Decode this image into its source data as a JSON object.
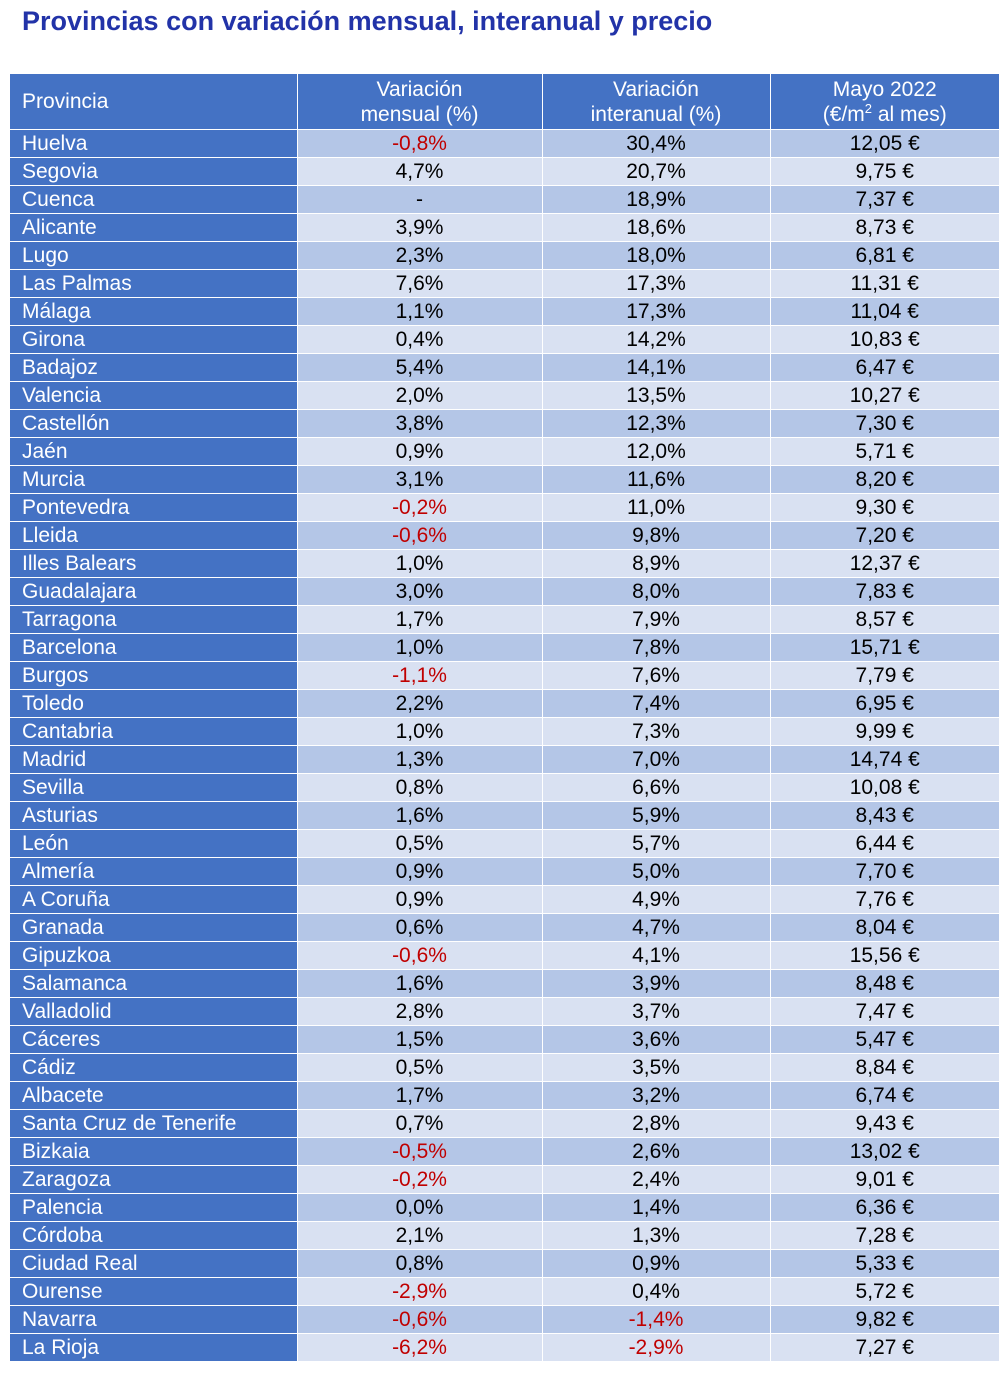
{
  "title": "Provincias con variación mensual, interanual y precio",
  "headers": {
    "provincia": "Provincia",
    "mensual_line1": "Variación",
    "mensual_line2": "mensual (%)",
    "interanual_line1": "Variación",
    "interanual_line2": "interanual (%)",
    "precio_line1": "Mayo 2022",
    "precio_line2_pre": "(€/m",
    "precio_line2_sup": "2",
    "precio_line2_post": " al mes)"
  },
  "colors": {
    "header_blue": "#4472c4",
    "row_dark": "#b4c6e7",
    "row_light": "#d9e1f2",
    "negative": "#c00000",
    "title": "#2233a8"
  },
  "rows": [
    {
      "provincia": "Huelva",
      "mensual": "-0,8%",
      "interanual": "30,4%",
      "precio": "12,05 €"
    },
    {
      "provincia": "Segovia",
      "mensual": "4,7%",
      "interanual": "20,7%",
      "precio": "9,75 €"
    },
    {
      "provincia": "Cuenca",
      "mensual": "-",
      "interanual": "18,9%",
      "precio": "7,37 €"
    },
    {
      "provincia": "Alicante",
      "mensual": "3,9%",
      "interanual": "18,6%",
      "precio": "8,73 €"
    },
    {
      "provincia": "Lugo",
      "mensual": "2,3%",
      "interanual": "18,0%",
      "precio": "6,81 €"
    },
    {
      "provincia": "Las Palmas",
      "mensual": "7,6%",
      "interanual": "17,3%",
      "precio": "11,31 €"
    },
    {
      "provincia": "Málaga",
      "mensual": "1,1%",
      "interanual": "17,3%",
      "precio": "11,04 €"
    },
    {
      "provincia": "Girona",
      "mensual": "0,4%",
      "interanual": "14,2%",
      "precio": "10,83 €"
    },
    {
      "provincia": "Badajoz",
      "mensual": "5,4%",
      "interanual": "14,1%",
      "precio": "6,47 €"
    },
    {
      "provincia": "Valencia",
      "mensual": "2,0%",
      "interanual": "13,5%",
      "precio": "10,27 €"
    },
    {
      "provincia": "Castellón",
      "mensual": "3,8%",
      "interanual": "12,3%",
      "precio": "7,30 €"
    },
    {
      "provincia": "Jaén",
      "mensual": "0,9%",
      "interanual": "12,0%",
      "precio": "5,71 €"
    },
    {
      "provincia": "Murcia",
      "mensual": "3,1%",
      "interanual": "11,6%",
      "precio": "8,20 €"
    },
    {
      "provincia": "Pontevedra",
      "mensual": "-0,2%",
      "interanual": "11,0%",
      "precio": "9,30 €"
    },
    {
      "provincia": "Lleida",
      "mensual": "-0,6%",
      "interanual": "9,8%",
      "precio": "7,20 €"
    },
    {
      "provincia": "Illes Balears",
      "mensual": "1,0%",
      "interanual": "8,9%",
      "precio": "12,37 €"
    },
    {
      "provincia": "Guadalajara",
      "mensual": "3,0%",
      "interanual": "8,0%",
      "precio": "7,83 €"
    },
    {
      "provincia": "Tarragona",
      "mensual": "1,7%",
      "interanual": "7,9%",
      "precio": "8,57 €"
    },
    {
      "provincia": "Barcelona",
      "mensual": "1,0%",
      "interanual": "7,8%",
      "precio": "15,71 €"
    },
    {
      "provincia": "Burgos",
      "mensual": "-1,1%",
      "interanual": "7,6%",
      "precio": "7,79 €"
    },
    {
      "provincia": "Toledo",
      "mensual": "2,2%",
      "interanual": "7,4%",
      "precio": "6,95 €"
    },
    {
      "provincia": "Cantabria",
      "mensual": "1,0%",
      "interanual": "7,3%",
      "precio": "9,99 €"
    },
    {
      "provincia": "Madrid",
      "mensual": "1,3%",
      "interanual": "7,0%",
      "precio": "14,74 €"
    },
    {
      "provincia": "Sevilla",
      "mensual": "0,8%",
      "interanual": "6,6%",
      "precio": "10,08 €"
    },
    {
      "provincia": "Asturias",
      "mensual": "1,6%",
      "interanual": "5,9%",
      "precio": "8,43 €"
    },
    {
      "provincia": "León",
      "mensual": "0,5%",
      "interanual": "5,7%",
      "precio": "6,44 €"
    },
    {
      "provincia": "Almería",
      "mensual": "0,9%",
      "interanual": "5,0%",
      "precio": "7,70 €"
    },
    {
      "provincia": "A Coruña",
      "mensual": "0,9%",
      "interanual": "4,9%",
      "precio": "7,76 €"
    },
    {
      "provincia": "Granada",
      "mensual": "0,6%",
      "interanual": "4,7%",
      "precio": "8,04 €"
    },
    {
      "provincia": "Gipuzkoa",
      "mensual": "-0,6%",
      "interanual": "4,1%",
      "precio": "15,56 €"
    },
    {
      "provincia": "Salamanca",
      "mensual": "1,6%",
      "interanual": "3,9%",
      "precio": "8,48 €"
    },
    {
      "provincia": "Valladolid",
      "mensual": "2,8%",
      "interanual": "3,7%",
      "precio": "7,47 €"
    },
    {
      "provincia": "Cáceres",
      "mensual": "1,5%",
      "interanual": "3,6%",
      "precio": "5,47 €"
    },
    {
      "provincia": "Cádiz",
      "mensual": "0,5%",
      "interanual": "3,5%",
      "precio": "8,84 €"
    },
    {
      "provincia": "Albacete",
      "mensual": "1,7%",
      "interanual": "3,2%",
      "precio": "6,74 €"
    },
    {
      "provincia": "Santa Cruz de Tenerife",
      "mensual": "0,7%",
      "interanual": "2,8%",
      "precio": "9,43 €"
    },
    {
      "provincia": "Bizkaia",
      "mensual": "-0,5%",
      "interanual": "2,6%",
      "precio": "13,02 €"
    },
    {
      "provincia": "Zaragoza",
      "mensual": "-0,2%",
      "interanual": "2,4%",
      "precio": "9,01 €"
    },
    {
      "provincia": "Palencia",
      "mensual": "0,0%",
      "interanual": "1,4%",
      "precio": "6,36 €"
    },
    {
      "provincia": "Córdoba",
      "mensual": "2,1%",
      "interanual": "1,3%",
      "precio": "7,28 €"
    },
    {
      "provincia": "Ciudad Real",
      "mensual": "0,8%",
      "interanual": "0,9%",
      "precio": "5,33 €"
    },
    {
      "provincia": "Ourense",
      "mensual": "-2,9%",
      "interanual": "0,4%",
      "precio": "5,72 €"
    },
    {
      "provincia": "Navarra",
      "mensual": "-0,6%",
      "interanual": "-1,4%",
      "precio": "9,82 €"
    },
    {
      "provincia": "La Rioja",
      "mensual": "-6,2%",
      "interanual": "-2,9%",
      "precio": "7,27 €"
    }
  ]
}
